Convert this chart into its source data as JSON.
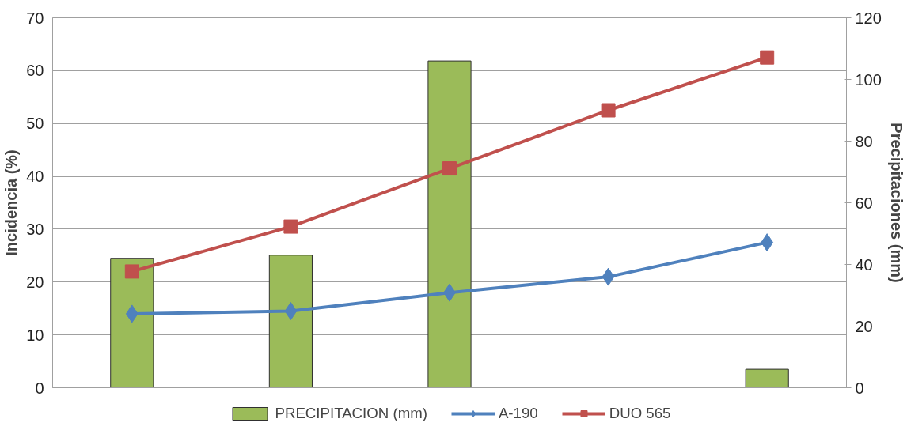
{
  "chart_data": {
    "type": "bar",
    "ylabel": "Incidencia (%)",
    "y2label": "Precipitaciones (mm)",
    "categories": [
      null,
      null,
      null,
      null,
      null
    ],
    "series": [
      {
        "name": "PRECIPITACION (mm)",
        "axis": "y2",
        "color": "#9bbb59",
        "values": [
          42,
          43,
          106,
          null,
          6
        ]
      },
      {
        "name": "A-190",
        "type": "line",
        "marker": "diamond",
        "color": "#4f81bd",
        "values": [
          14,
          14.5,
          18,
          21,
          27.5
        ]
      },
      {
        "name": "DUO 565",
        "type": "line",
        "marker": "square",
        "color": "#c0504d",
        "values": [
          22,
          30.5,
          41.5,
          52.5,
          62.5
        ]
      }
    ],
    "ylim": [
      0,
      70
    ],
    "yticks": [
      0,
      10,
      20,
      30,
      40,
      50,
      60,
      70
    ],
    "y2lim": [
      0,
      120
    ],
    "y2ticks": [
      0,
      20,
      40,
      60,
      80,
      100,
      120
    ],
    "grid": "y",
    "legend": "bottom",
    "line_style": "solid"
  }
}
